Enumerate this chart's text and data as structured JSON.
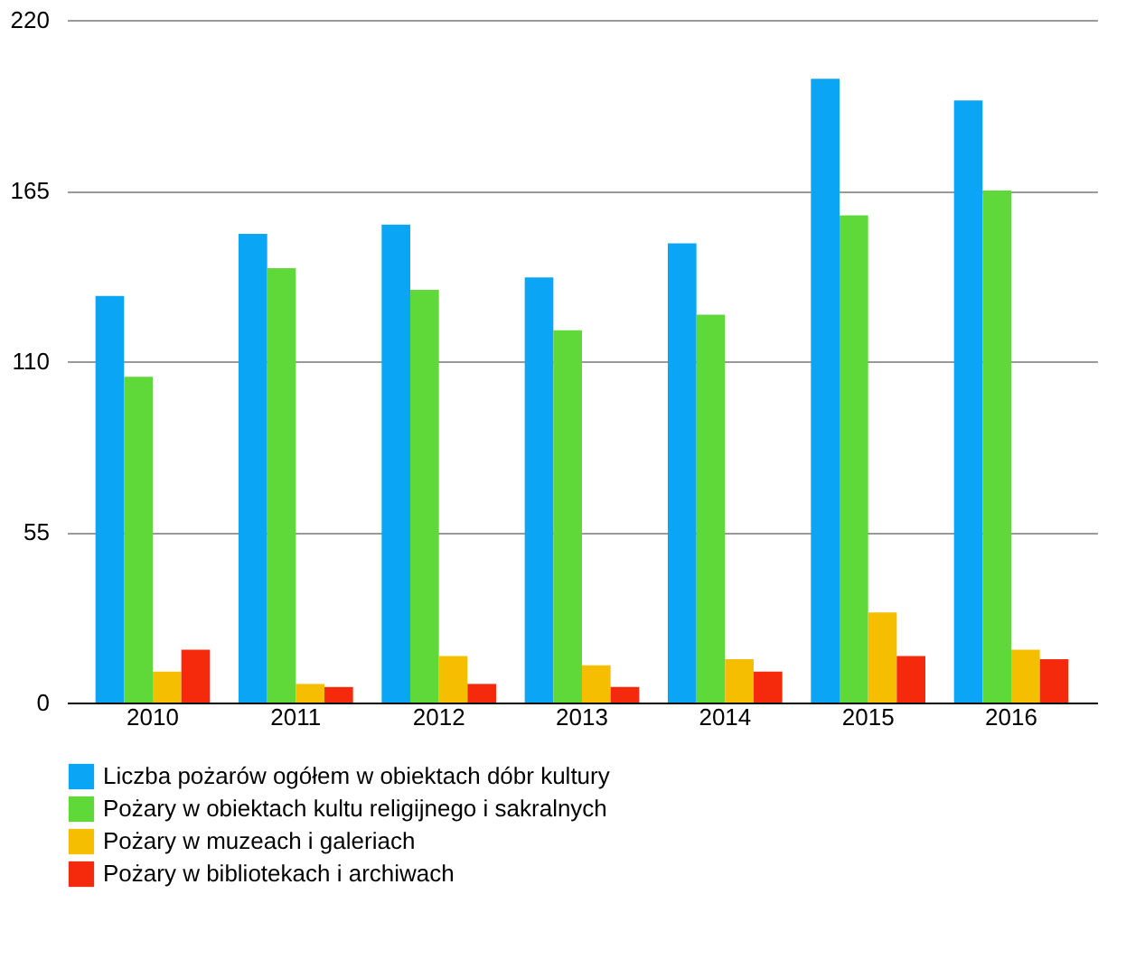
{
  "chart_data": {
    "type": "bar",
    "categories": [
      "2010",
      "2011",
      "2012",
      "2013",
      "2014",
      "2015",
      "2016"
    ],
    "series": [
      {
        "name": "Liczba pożarów ogółem w obiektach dóbr kultury",
        "color": "#0ba5f5",
        "values": [
          131,
          151,
          154,
          137,
          148,
          201,
          194
        ]
      },
      {
        "name": "Pożary w obiektach kultu religijnego i sakralnych",
        "color": "#5fd83a",
        "values": [
          105,
          140,
          133,
          120,
          125,
          157,
          165
        ]
      },
      {
        "name": "Pożary w muzeach i galeriach",
        "color": "#f5be00",
        "values": [
          10,
          6,
          15,
          12,
          14,
          29,
          17
        ]
      },
      {
        "name": "Pożary w bibliotekach i archiwach",
        "color": "#f52a0c",
        "values": [
          17,
          5,
          6,
          5,
          10,
          15,
          14
        ]
      }
    ],
    "ylim": [
      0,
      220
    ],
    "yticks": [
      0,
      55,
      110,
      165,
      220
    ],
    "grid": "y",
    "legend": "bottom"
  }
}
